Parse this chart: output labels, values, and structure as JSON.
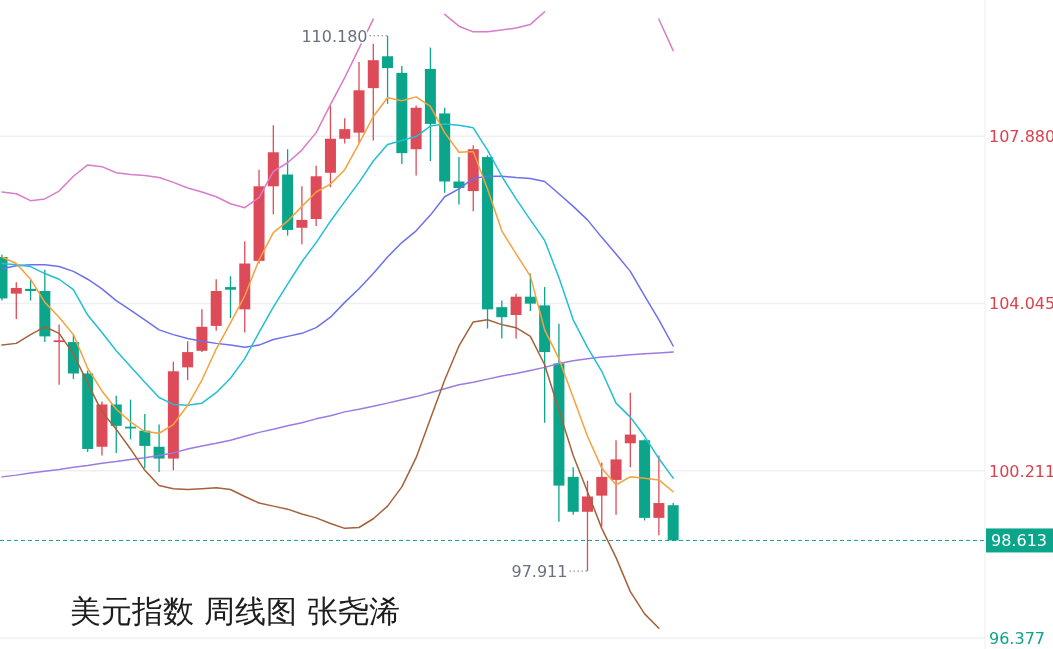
{
  "chart_data": {
    "type": "candlestick",
    "title": "美元指数 周线图 张尧浠",
    "categories": [
      null,
      null,
      null,
      null,
      null,
      null,
      null,
      null,
      null,
      null,
      null,
      null,
      null,
      null,
      null,
      null,
      null,
      null,
      null,
      null,
      null,
      null,
      null,
      null,
      null,
      null,
      null,
      null,
      null,
      null,
      null,
      null,
      null,
      null,
      null,
      null,
      null,
      null,
      null,
      null,
      null,
      null,
      null,
      null,
      null,
      null,
      null,
      null
    ],
    "ohlc": [
      [
        105.11,
        105.16,
        104.11,
        104.16
      ],
      [
        104.27,
        104.53,
        103.69,
        104.4
      ],
      [
        104.38,
        104.58,
        104.11,
        104.33
      ],
      [
        104.33,
        104.82,
        103.16,
        103.29
      ],
      [
        103.16,
        103.56,
        102.18,
        103.2
      ],
      [
        103.16,
        103.33,
        102.31,
        102.44
      ],
      [
        102.44,
        102.51,
        100.64,
        100.71
      ],
      [
        100.76,
        101.8,
        100.56,
        101.73
      ],
      [
        101.73,
        101.93,
        100.62,
        101.24
      ],
      [
        101.22,
        101.84,
        100.93,
        101.18
      ],
      [
        101.13,
        101.51,
        100.27,
        100.78
      ],
      [
        100.76,
        101.27,
        100.18,
        100.49
      ],
      [
        100.49,
        102.71,
        100.22,
        102.49
      ],
      [
        102.58,
        103.18,
        102.29,
        102.93
      ],
      [
        102.96,
        103.91,
        102.93,
        103.51
      ],
      [
        103.53,
        104.6,
        103.42,
        104.33
      ],
      [
        104.42,
        104.67,
        103.71,
        104.36
      ],
      [
        103.91,
        105.47,
        103.38,
        104.96
      ],
      [
        105.02,
        107.11,
        104.96,
        106.73
      ],
      [
        106.73,
        108.13,
        106.09,
        107.51
      ],
      [
        107.0,
        107.58,
        105.6,
        105.73
      ],
      [
        105.78,
        106.73,
        105.4,
        105.96
      ],
      [
        105.98,
        107.2,
        105.82,
        106.96
      ],
      [
        107.04,
        108.58,
        106.71,
        107.82
      ],
      [
        107.82,
        108.29,
        107.71,
        108.04
      ],
      [
        107.96,
        109.58,
        107.73,
        108.93
      ],
      [
        108.98,
        110.0,
        107.78,
        109.62
      ],
      [
        109.71,
        110.18,
        108.62,
        109.44
      ],
      [
        109.33,
        109.49,
        107.24,
        107.49
      ],
      [
        107.58,
        108.58,
        106.98,
        108.53
      ],
      [
        109.42,
        109.91,
        107.31,
        108.16
      ],
      [
        108.4,
        108.53,
        106.58,
        106.84
      ],
      [
        106.84,
        107.4,
        106.31,
        106.69
      ],
      [
        106.62,
        107.67,
        106.16,
        107.58
      ],
      [
        107.4,
        107.44,
        103.47,
        103.91
      ],
      [
        103.96,
        104.11,
        103.24,
        103.73
      ],
      [
        103.78,
        104.27,
        103.24,
        104.2
      ],
      [
        104.2,
        104.73,
        103.87,
        104.04
      ],
      [
        104.0,
        104.42,
        101.31,
        102.93
      ],
      [
        102.67,
        103.58,
        99.04,
        99.87
      ],
      [
        100.07,
        100.29,
        99.2,
        99.27
      ],
      [
        99.27,
        99.98,
        97.911,
        99.62
      ],
      [
        99.64,
        100.4,
        98.93,
        100.07
      ],
      [
        100.0,
        100.91,
        99.2,
        100.47
      ],
      [
        100.84,
        102.0,
        100.29,
        101.04
      ],
      [
        100.91,
        100.93,
        99.07,
        99.13
      ],
      [
        99.13,
        100.56,
        98.73,
        99.47
      ],
      [
        99.42,
        99.47,
        98.613,
        98.613
      ]
    ],
    "colors": [
      "#0ba58b",
      "#dc4b57",
      "#0ba58b",
      "#0ba58b",
      "#dc4b57",
      "#0ba58b",
      "#0ba58b",
      "#dc4b57",
      "#0ba58b",
      "#0ba58b",
      "#0ba58b",
      "#0ba58b",
      "#dc4b57",
      "#dc4b57",
      "#dc4b57",
      "#dc4b57",
      "#0ba58b",
      "#dc4b57",
      "#dc4b57",
      "#dc4b57",
      "#0ba58b",
      "#dc4b57",
      "#dc4b57",
      "#dc4b57",
      "#dc4b57",
      "#dc4b57",
      "#dc4b57",
      "#0ba58b",
      "#0ba58b",
      "#dc4b57",
      "#0ba58b",
      "#0ba58b",
      "#0ba58b",
      "#dc4b57",
      "#0ba58b",
      "#0ba58b",
      "#dc4b57",
      "#0ba58b",
      "#0ba58b",
      "#0ba58b",
      "#0ba58b",
      "#dc4b57",
      "#dc4b57",
      "#dc4b57",
      "#dc4b57",
      "#0ba58b",
      "#dc4b57",
      "#0ba58b"
    ],
    "series": [
      {
        "type": "line",
        "color": "#9b7be3",
        "values": [
          100.07,
          100.11,
          100.16,
          100.2,
          100.24,
          100.29,
          100.33,
          100.38,
          100.42,
          100.47,
          100.51,
          100.56,
          100.62,
          100.71,
          100.78,
          100.84,
          100.91,
          101.0,
          101.09,
          101.16,
          101.24,
          101.31,
          101.4,
          101.47,
          101.56,
          101.62,
          101.69,
          101.76,
          101.84,
          101.91,
          102.0,
          102.09,
          102.18,
          102.24,
          102.31,
          102.38,
          102.44,
          102.51,
          102.58,
          102.67,
          102.73,
          102.78,
          102.82,
          102.84,
          102.87,
          102.89,
          102.91,
          102.93
        ]
      },
      {
        "type": "line",
        "color": "#d97cc9",
        "values": [
          106.6,
          106.56,
          106.4,
          106.44,
          106.62,
          106.96,
          107.22,
          107.18,
          107.04,
          107.0,
          106.98,
          106.93,
          106.82,
          106.69,
          106.6,
          106.49,
          106.33,
          106.24,
          106.47,
          107.07,
          107.27,
          107.56,
          107.96,
          108.6,
          109.22,
          109.89,
          110.56,
          null,
          null,
          null,
          null,
          110.67,
          110.4,
          110.27,
          110.27,
          110.31,
          110.36,
          110.44,
          110.73,
          null,
          null,
          null,
          null,
          null,
          null,
          null,
          110.56,
          109.84
        ]
      },
      {
        "type": "line",
        "color": "#a4613a",
        "values": [
          103.09,
          103.13,
          103.33,
          103.51,
          103.36,
          102.89,
          102.22,
          101.56,
          101.16,
          100.71,
          100.22,
          99.87,
          99.8,
          99.78,
          99.8,
          99.82,
          99.78,
          99.62,
          99.47,
          99.4,
          99.33,
          99.22,
          99.13,
          99.0,
          98.89,
          98.91,
          99.11,
          99.4,
          99.84,
          100.51,
          101.4,
          102.29,
          103.07,
          103.62,
          103.67,
          103.56,
          103.49,
          103.29,
          102.64,
          101.6,
          100.56,
          99.73,
          98.89,
          98.22,
          97.44,
          96.93,
          96.6,
          null
        ]
      },
      {
        "type": "line",
        "color": "#6c70ee",
        "values": [
          104.84,
          104.91,
          104.93,
          104.93,
          104.89,
          104.78,
          104.6,
          104.38,
          104.11,
          103.89,
          103.67,
          103.44,
          103.33,
          103.24,
          103.18,
          103.13,
          103.09,
          103.04,
          103.09,
          103.22,
          103.29,
          103.36,
          103.49,
          103.73,
          104.07,
          104.38,
          104.73,
          105.11,
          105.44,
          105.71,
          106.07,
          106.49,
          106.67,
          106.91,
          106.96,
          106.96,
          106.93,
          106.91,
          106.84,
          106.56,
          106.27,
          105.96,
          105.56,
          105.18,
          104.78,
          104.22,
          103.67,
          103.07
        ]
      },
      {
        "type": "line",
        "color": "#22bfd3",
        "values": [
          104.96,
          104.93,
          104.89,
          104.73,
          104.6,
          104.36,
          103.78,
          103.38,
          102.96,
          102.6,
          102.24,
          101.89,
          101.73,
          101.71,
          101.76,
          102.0,
          102.33,
          102.78,
          103.38,
          103.96,
          104.49,
          105.0,
          105.44,
          105.93,
          106.38,
          106.82,
          107.31,
          107.69,
          107.78,
          107.87,
          108.11,
          108.16,
          108.13,
          108.07,
          107.56,
          106.96,
          106.44,
          105.96,
          105.49,
          104.64,
          103.67,
          103.04,
          102.49,
          101.76,
          101.44,
          101.0,
          100.49,
          100.04
        ]
      },
      {
        "type": "line",
        "color": "#f8a03c",
        "values": [
          105.11,
          104.96,
          104.6,
          104.07,
          103.73,
          103.33,
          102.56,
          102.04,
          101.62,
          101.33,
          101.11,
          101.07,
          101.27,
          101.71,
          102.29,
          103.0,
          103.6,
          104.22,
          105.04,
          105.67,
          105.93,
          106.27,
          106.6,
          106.78,
          107.11,
          107.71,
          108.33,
          108.76,
          108.69,
          108.78,
          108.56,
          107.96,
          107.51,
          107.53,
          106.67,
          105.71,
          105.18,
          104.67,
          103.44,
          102.78,
          101.89,
          101.0,
          100.27,
          99.89,
          100.07,
          100.04,
          100.0,
          99.73
        ]
      }
    ],
    "ylim": [
      96.377,
      111.0
    ],
    "yticks": [
      {
        "value": 107.88,
        "label": "107.880"
      },
      {
        "value": 104.045,
        "label": "104.045"
      },
      {
        "value": 100.211,
        "label": "100.211"
      },
      {
        "value": 96.377,
        "label": "96.377"
      }
    ],
    "grid": "y",
    "ref_lines": [
      {
        "axis": "y",
        "value": 98.613,
        "label": "98.613",
        "color": "#0ba58b",
        "line_style": "dashed"
      }
    ],
    "annotations": [
      "110.180",
      "97.911"
    ]
  }
}
